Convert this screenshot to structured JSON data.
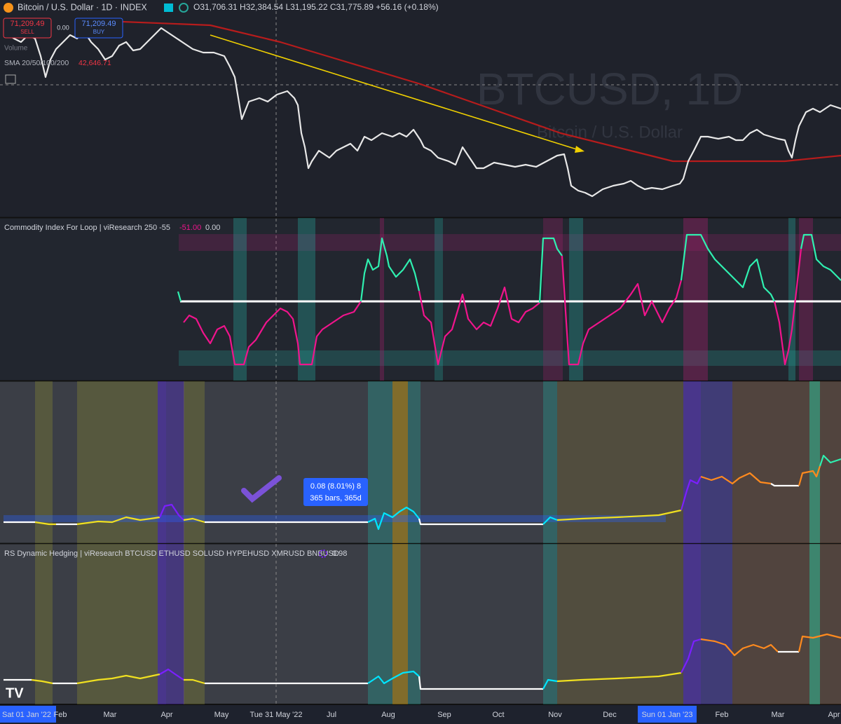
{
  "header": {
    "symbol": "Bitcoin / U.S. Dollar · 1D · INDEX",
    "ohlc": "O31,706.31 H32,384.54 L31,195.22 C31,775.89 +56.16 (+0.18%)"
  },
  "trade": {
    "sell_price": "71,209.49",
    "sell_label": "SELL",
    "spread": "0.00",
    "buy_price": "71,209.49",
    "buy_label": "BUY"
  },
  "price_pane": {
    "volume_label": "Volume",
    "sma_label": "SMA 20/50/100/200",
    "sma_value": "42,646.71",
    "watermark_symbol": "BTCUSD, 1D",
    "watermark_name": "Bitcoin / U.S. Dollar"
  },
  "cci_pane": {
    "title": "Commodity Index For Loop | viResearch 250 -55",
    "value_1": "-51.00",
    "value_2": "0.00"
  },
  "measure_tooltip": {
    "line_1": "0.08 (8.01%) 8",
    "line_2": "365 bars, 365d"
  },
  "hedge_pane": {
    "title": "RS Dynamic Hedging | viResearch BTCUSD ETHUSD SOLUSD HYPEHUSD XMRUSD BNBUSD",
    "value": "0.98"
  },
  "time_axis": {
    "labels": [
      "Sat 01 Jan '22",
      "Feb",
      "Mar",
      "Apr",
      "May",
      "Tue 31 May '22",
      "Jul",
      "Aug",
      "Sep",
      "Oct",
      "Nov",
      "Dec",
      "Sun 01 Jan '23",
      "Feb",
      "Mar",
      "Apr"
    ]
  }
}
